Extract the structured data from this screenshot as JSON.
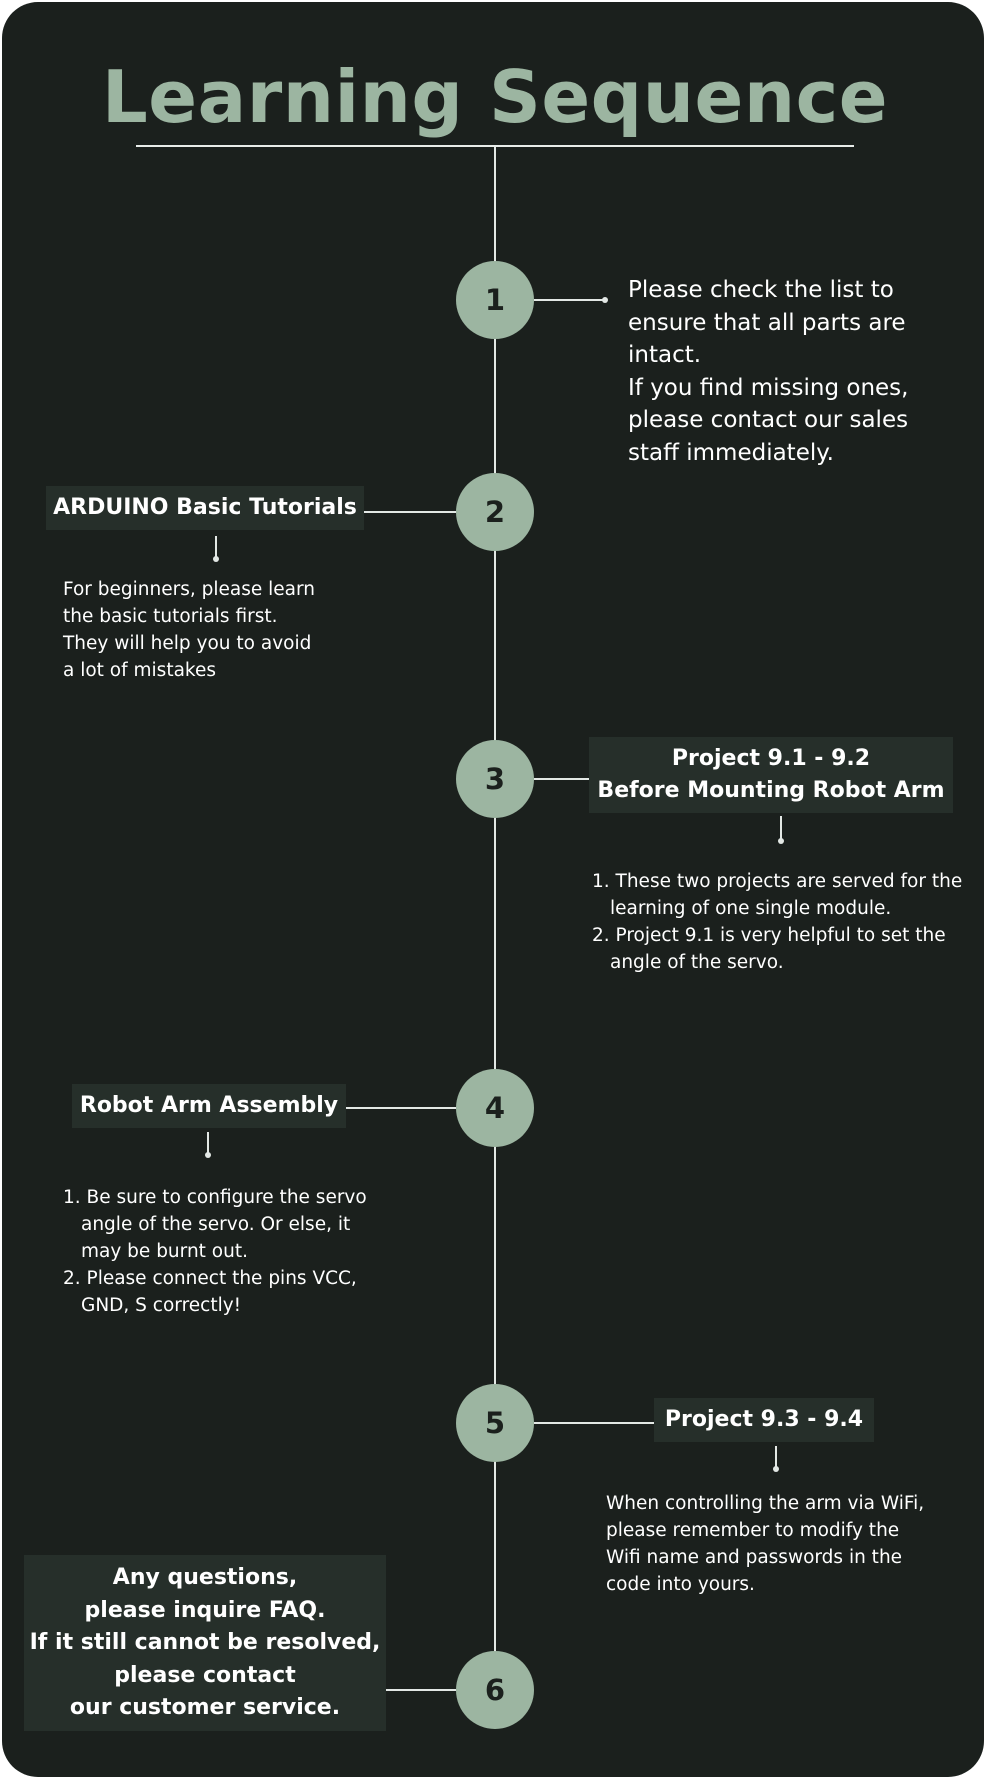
{
  "title": "Learning Sequence",
  "steps": [
    {
      "number": "1",
      "lines": [
        "Please check the list to",
        "ensure that all parts are",
        "intact.",
        "If you find missing ones,",
        "please contact our sales",
        "staff immediately."
      ]
    },
    {
      "number": "2",
      "label": "ARDUINO Basic Tutorials",
      "lines": [
        "For beginners, please learn",
        "the basic tutorials first.",
        "They will help you to avoid",
        "a lot of mistakes"
      ]
    },
    {
      "number": "3",
      "label_lines": [
        "Project 9.1 - 9.2",
        "Before Mounting Robot Arm"
      ],
      "items": [
        "1. These two projects are served for the learning of one single module.",
        "2. Project 9.1 is very helpful to set the angle of the servo."
      ]
    },
    {
      "number": "4",
      "label": "Robot Arm Assembly",
      "items": [
        "1. Be sure to configure the servo angle of the servo. Or else, it may be burnt out.",
        "2. Please connect the pins VCC, GND, S correctly!"
      ]
    },
    {
      "number": "5",
      "label": "Project 9.3 - 9.4",
      "lines": [
        "When controlling the arm via WiFi,",
        "please remember to modify the",
        "Wifi name and passwords in the",
        "code into yours."
      ]
    },
    {
      "number": "6",
      "label_lines": [
        "Any questions,",
        "please inquire FAQ.",
        "If it still cannot be resolved,",
        "please contact",
        "our customer service."
      ]
    }
  ]
}
